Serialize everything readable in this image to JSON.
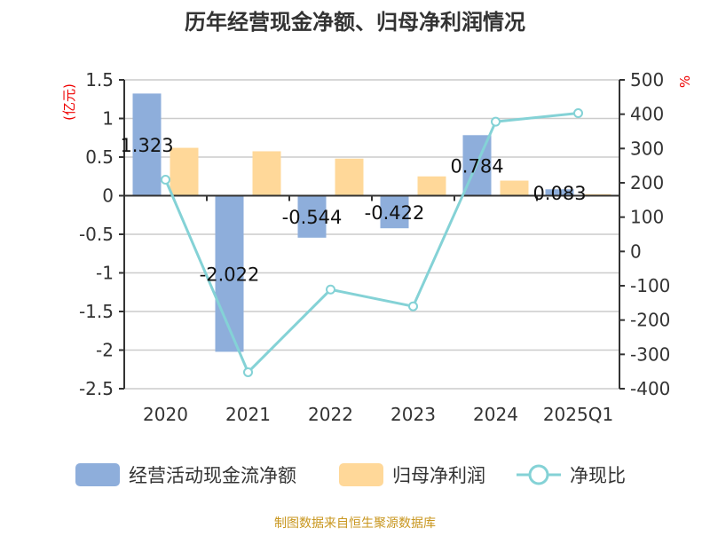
{
  "chart_data": {
    "type": "bar",
    "title": "历年经营现金净额、归母净利润情况",
    "categories": [
      "2020",
      "2021",
      "2022",
      "2023",
      "2024",
      "2025Q1"
    ],
    "series": [
      {
        "name": "经营活动现金流净额",
        "type": "bar",
        "axis": "left",
        "color": "#8eaedb",
        "values": [
          1.323,
          -2.022,
          -0.544,
          -0.422,
          0.784,
          0.083
        ],
        "labels": [
          "1.323",
          "-2.022",
          "-0.544",
          "-0.422",
          "0.784",
          "0.083"
        ]
      },
      {
        "name": "归母净利润",
        "type": "bar",
        "axis": "left",
        "color": "#ffd899",
        "values": [
          0.62,
          0.575,
          0.48,
          0.25,
          0.195,
          0.02
        ]
      },
      {
        "name": "净现比",
        "type": "line",
        "axis": "right",
        "color": "#84d2d6",
        "values": [
          209,
          -352,
          -111,
          -160,
          378,
          403
        ]
      }
    ],
    "ylabel": "(亿元)",
    "y2label": "%",
    "ylim": [
      -2.5,
      1.5
    ],
    "y2lim": [
      -400,
      500
    ],
    "yticks": [
      "1.5",
      "1",
      "0.5",
      "0",
      "-0.5",
      "-1",
      "-1.5",
      "-2",
      "-2.5"
    ],
    "y2ticks": [
      "500",
      "400",
      "300",
      "200",
      "100",
      "0",
      "-100",
      "-200",
      "-300",
      "-400"
    ],
    "legend_position": "bottom",
    "source": "制图数据来自恒生聚源数据库"
  }
}
